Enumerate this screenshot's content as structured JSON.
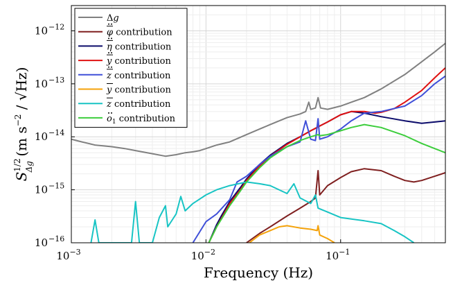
{
  "chart_data": {
    "type": "line",
    "xlabel": "Frequency (Hz)",
    "ylabel": "S_{Δg}^{1/2} (m s^{-2} / √Hz)",
    "xscale": "log",
    "yscale": "log",
    "xlim": [
      0.001,
      0.6
    ],
    "ylim": [
      1e-16,
      3e-12
    ],
    "grid": true,
    "legend_position": "top-left",
    "x_ticks": [
      {
        "value": 0.001,
        "base": "10",
        "exp": "−3"
      },
      {
        "value": 0.01,
        "base": "10",
        "exp": "−2"
      },
      {
        "value": 0.1,
        "base": "10",
        "exp": "−1"
      }
    ],
    "y_ticks": [
      {
        "value": 1e-16,
        "base": "10",
        "exp": "−16"
      },
      {
        "value": 1e-15,
        "base": "10",
        "exp": "−15"
      },
      {
        "value": 1e-14,
        "base": "10",
        "exp": "−14"
      },
      {
        "value": 1e-13,
        "base": "10",
        "exp": "−13"
      },
      {
        "value": 1e-12,
        "base": "10",
        "exp": "−12"
      }
    ],
    "series": [
      {
        "name": "Δg",
        "color": "#808080",
        "points": [
          [
            0.001,
            9e-15
          ],
          [
            0.0012,
            8e-15
          ],
          [
            0.0015,
            7e-15
          ],
          [
            0.002,
            6.5e-15
          ],
          [
            0.0025,
            6e-15
          ],
          [
            0.003,
            5.5e-15
          ],
          [
            0.004,
            4.8e-15
          ],
          [
            0.005,
            4.3e-15
          ],
          [
            0.006,
            4.6e-15
          ],
          [
            0.007,
            5e-15
          ],
          [
            0.008,
            5.2e-15
          ],
          [
            0.009,
            5.5e-15
          ],
          [
            0.01,
            6e-15
          ],
          [
            0.012,
            7e-15
          ],
          [
            0.015,
            8e-15
          ],
          [
            0.02,
            1.1e-14
          ],
          [
            0.025,
            1.4e-14
          ],
          [
            0.03,
            1.7e-14
          ],
          [
            0.04,
            2.3e-14
          ],
          [
            0.05,
            2.7e-14
          ],
          [
            0.055,
            3e-14
          ],
          [
            0.058,
            4.5e-14
          ],
          [
            0.06,
            3.3e-14
          ],
          [
            0.065,
            3.5e-14
          ],
          [
            0.068,
            5.5e-14
          ],
          [
            0.071,
            3.5e-14
          ],
          [
            0.08,
            3.3e-14
          ],
          [
            0.1,
            3.8e-14
          ],
          [
            0.15,
            5.5e-14
          ],
          [
            0.2,
            8e-14
          ],
          [
            0.3,
            1.5e-13
          ],
          [
            0.4,
            2.6e-13
          ],
          [
            0.5,
            4e-13
          ],
          [
            0.6,
            5.8e-13
          ]
        ]
      },
      {
        "name": "φ̈ contribution",
        "color": "#7f1f1f",
        "points": [
          [
            0.02,
            1e-16
          ],
          [
            0.025,
            1.5e-16
          ],
          [
            0.03,
            2e-16
          ],
          [
            0.04,
            3.2e-16
          ],
          [
            0.05,
            4.5e-16
          ],
          [
            0.06,
            6e-16
          ],
          [
            0.065,
            7e-16
          ],
          [
            0.068,
            2.3e-15
          ],
          [
            0.07,
            8e-16
          ],
          [
            0.08,
            1.2e-15
          ],
          [
            0.1,
            1.7e-15
          ],
          [
            0.12,
            2.2e-15
          ],
          [
            0.15,
            2.5e-15
          ],
          [
            0.2,
            2.3e-15
          ],
          [
            0.25,
            1.8e-15
          ],
          [
            0.3,
            1.5e-15
          ],
          [
            0.35,
            1.4e-15
          ],
          [
            0.4,
            1.5e-15
          ],
          [
            0.5,
            1.8e-15
          ],
          [
            0.6,
            2.1e-15
          ]
        ]
      },
      {
        "name": "η̈ contribution",
        "color": "#0a0a6a",
        "points": [
          [
            0.0105,
            1e-16
          ],
          [
            0.012,
            2.2e-16
          ],
          [
            0.013,
            3.2e-16
          ],
          [
            0.015,
            6e-16
          ],
          [
            0.018,
            1.1e-15
          ],
          [
            0.02,
            1.6e-15
          ],
          [
            0.025,
            3e-15
          ],
          [
            0.03,
            4.5e-15
          ],
          [
            0.04,
            7.5e-15
          ],
          [
            0.05,
            1e-14
          ],
          [
            0.06,
            1.3e-14
          ],
          [
            0.067,
            1.5e-14
          ],
          [
            0.07,
            1.6e-14
          ],
          [
            0.08,
            1.9e-14
          ],
          [
            0.1,
            2.6e-14
          ],
          [
            0.12,
            3e-14
          ],
          [
            0.15,
            2.8e-14
          ],
          [
            0.2,
            2.4e-14
          ],
          [
            0.3,
            2e-14
          ],
          [
            0.4,
            1.8e-14
          ],
          [
            0.5,
            1.9e-14
          ],
          [
            0.6,
            2e-14
          ]
        ]
      },
      {
        "name": "ÿ contribution",
        "color": "#e01010",
        "points": [
          [
            0.0105,
            1e-16
          ],
          [
            0.012,
            2e-16
          ],
          [
            0.015,
            5.5e-16
          ],
          [
            0.018,
            1e-15
          ],
          [
            0.02,
            1.5e-15
          ],
          [
            0.025,
            2.8e-15
          ],
          [
            0.03,
            4.3e-15
          ],
          [
            0.04,
            7.2e-15
          ],
          [
            0.05,
            1e-14
          ],
          [
            0.06,
            1.3e-14
          ],
          [
            0.07,
            1.6e-14
          ],
          [
            0.08,
            1.9e-14
          ],
          [
            0.1,
            2.6e-14
          ],
          [
            0.12,
            3e-14
          ],
          [
            0.15,
            3e-14
          ],
          [
            0.18,
            2.8e-14
          ],
          [
            0.2,
            2.9e-14
          ],
          [
            0.25,
            3.4e-14
          ],
          [
            0.3,
            4.5e-14
          ],
          [
            0.4,
            7.5e-14
          ],
          [
            0.5,
            1.3e-13
          ],
          [
            0.6,
            2e-13
          ]
        ]
      },
      {
        "name": "z̈ contribution",
        "color": "#3f4fd8",
        "points": [
          [
            0.008,
            1e-16
          ],
          [
            0.01,
            2.5e-16
          ],
          [
            0.012,
            3.5e-16
          ],
          [
            0.015,
            6.5e-16
          ],
          [
            0.017,
            1.4e-15
          ],
          [
            0.02,
            1.8e-15
          ],
          [
            0.025,
            3e-15
          ],
          [
            0.03,
            4.3e-15
          ],
          [
            0.04,
            6.5e-15
          ],
          [
            0.05,
            8e-15
          ],
          [
            0.055,
            2e-14
          ],
          [
            0.06,
            9e-15
          ],
          [
            0.065,
            8.5e-15
          ],
          [
            0.068,
            2.2e-14
          ],
          [
            0.07,
            9e-15
          ],
          [
            0.08,
            1e-14
          ],
          [
            0.1,
            1.4e-14
          ],
          [
            0.12,
            2e-14
          ],
          [
            0.15,
            2.8e-14
          ],
          [
            0.2,
            3e-14
          ],
          [
            0.3,
            3.8e-14
          ],
          [
            0.4,
            6e-14
          ],
          [
            0.5,
            1e-13
          ],
          [
            0.6,
            1.4e-13
          ]
        ]
      },
      {
        "name": "ȳ contribution",
        "color": "#f4a20a",
        "points": [
          [
            0.021,
            1e-16
          ],
          [
            0.025,
            1.4e-16
          ],
          [
            0.03,
            1.7e-16
          ],
          [
            0.035,
            2e-16
          ],
          [
            0.04,
            2.1e-16
          ],
          [
            0.05,
            1.9e-16
          ],
          [
            0.06,
            1.8e-16
          ],
          [
            0.067,
            1.7e-16
          ],
          [
            0.068,
            2.1e-16
          ],
          [
            0.07,
            1.4e-16
          ],
          [
            0.08,
            1.2e-16
          ],
          [
            0.09,
            1e-16
          ]
        ]
      },
      {
        "name": "z̄ contribution",
        "color": "#17c4c4",
        "points": [
          [
            0.0014,
            1e-16
          ],
          [
            0.0015,
            2.7e-16
          ],
          [
            0.0016,
            1e-16
          ],
          [
            0.0028,
            1e-16
          ],
          [
            0.003,
            6e-16
          ],
          [
            0.0032,
            1e-16
          ],
          [
            0.004,
            1e-16
          ],
          [
            0.0045,
            3e-16
          ],
          [
            0.005,
            5e-16
          ],
          [
            0.0052,
            2e-16
          ],
          [
            0.006,
            3.5e-16
          ],
          [
            0.0065,
            7.5e-16
          ],
          [
            0.007,
            4e-16
          ],
          [
            0.008,
            5.5e-16
          ],
          [
            0.01,
            8e-16
          ],
          [
            0.012,
            1e-15
          ],
          [
            0.015,
            1.2e-15
          ],
          [
            0.02,
            1.4e-15
          ],
          [
            0.025,
            1.3e-15
          ],
          [
            0.03,
            1.2e-15
          ],
          [
            0.04,
            8.5e-16
          ],
          [
            0.045,
            1.3e-15
          ],
          [
            0.05,
            7e-16
          ],
          [
            0.06,
            5.5e-16
          ],
          [
            0.065,
            8e-16
          ],
          [
            0.068,
            4.5e-16
          ],
          [
            0.08,
            3.8e-16
          ],
          [
            0.1,
            3e-16
          ],
          [
            0.15,
            2.6e-16
          ],
          [
            0.2,
            2.3e-16
          ],
          [
            0.25,
            1.7e-16
          ],
          [
            0.3,
            1.3e-16
          ],
          [
            0.35,
            1e-16
          ]
        ]
      },
      {
        "name": "ö₁ contribution",
        "color": "#3ccd3c",
        "points": [
          [
            0.0105,
            1e-16
          ],
          [
            0.012,
            2e-16
          ],
          [
            0.015,
            5e-16
          ],
          [
            0.018,
            9.5e-16
          ],
          [
            0.02,
            1.4e-15
          ],
          [
            0.025,
            2.6e-15
          ],
          [
            0.03,
            4e-15
          ],
          [
            0.04,
            6.5e-15
          ],
          [
            0.05,
            8.5e-15
          ],
          [
            0.06,
            1e-14
          ],
          [
            0.068,
            1.1e-14
          ],
          [
            0.07,
            1.05e-14
          ],
          [
            0.08,
            1.1e-14
          ],
          [
            0.1,
            1.3e-14
          ],
          [
            0.12,
            1.5e-14
          ],
          [
            0.15,
            1.7e-14
          ],
          [
            0.2,
            1.5e-14
          ],
          [
            0.3,
            1.05e-14
          ],
          [
            0.4,
            7.5e-15
          ],
          [
            0.5,
            6e-15
          ],
          [
            0.6,
            5e-15
          ]
        ]
      }
    ],
    "legend": [
      {
        "base": "Δ",
        "italic": "g",
        "suffix": ""
      },
      {
        "base": "φ",
        "italic": "",
        "suffix": " contribution",
        "accent": "ddot-bar"
      },
      {
        "base": "η",
        "italic": "",
        "suffix": " contribution",
        "accent": "ddot-bar"
      },
      {
        "base": "y",
        "italic": "",
        "suffix": " contribution",
        "accent": "ddot-bar"
      },
      {
        "base": "z",
        "italic": "",
        "suffix": " contribution",
        "accent": "ddot-bar"
      },
      {
        "base": "y",
        "italic": "",
        "suffix": " contribution",
        "accent": "bar"
      },
      {
        "base": "z",
        "italic": "",
        "suffix": " contribution",
        "accent": "bar"
      },
      {
        "base": "o",
        "italic": "",
        "suffix": " contribution",
        "accent": "ddot",
        "sub": "1"
      }
    ]
  }
}
